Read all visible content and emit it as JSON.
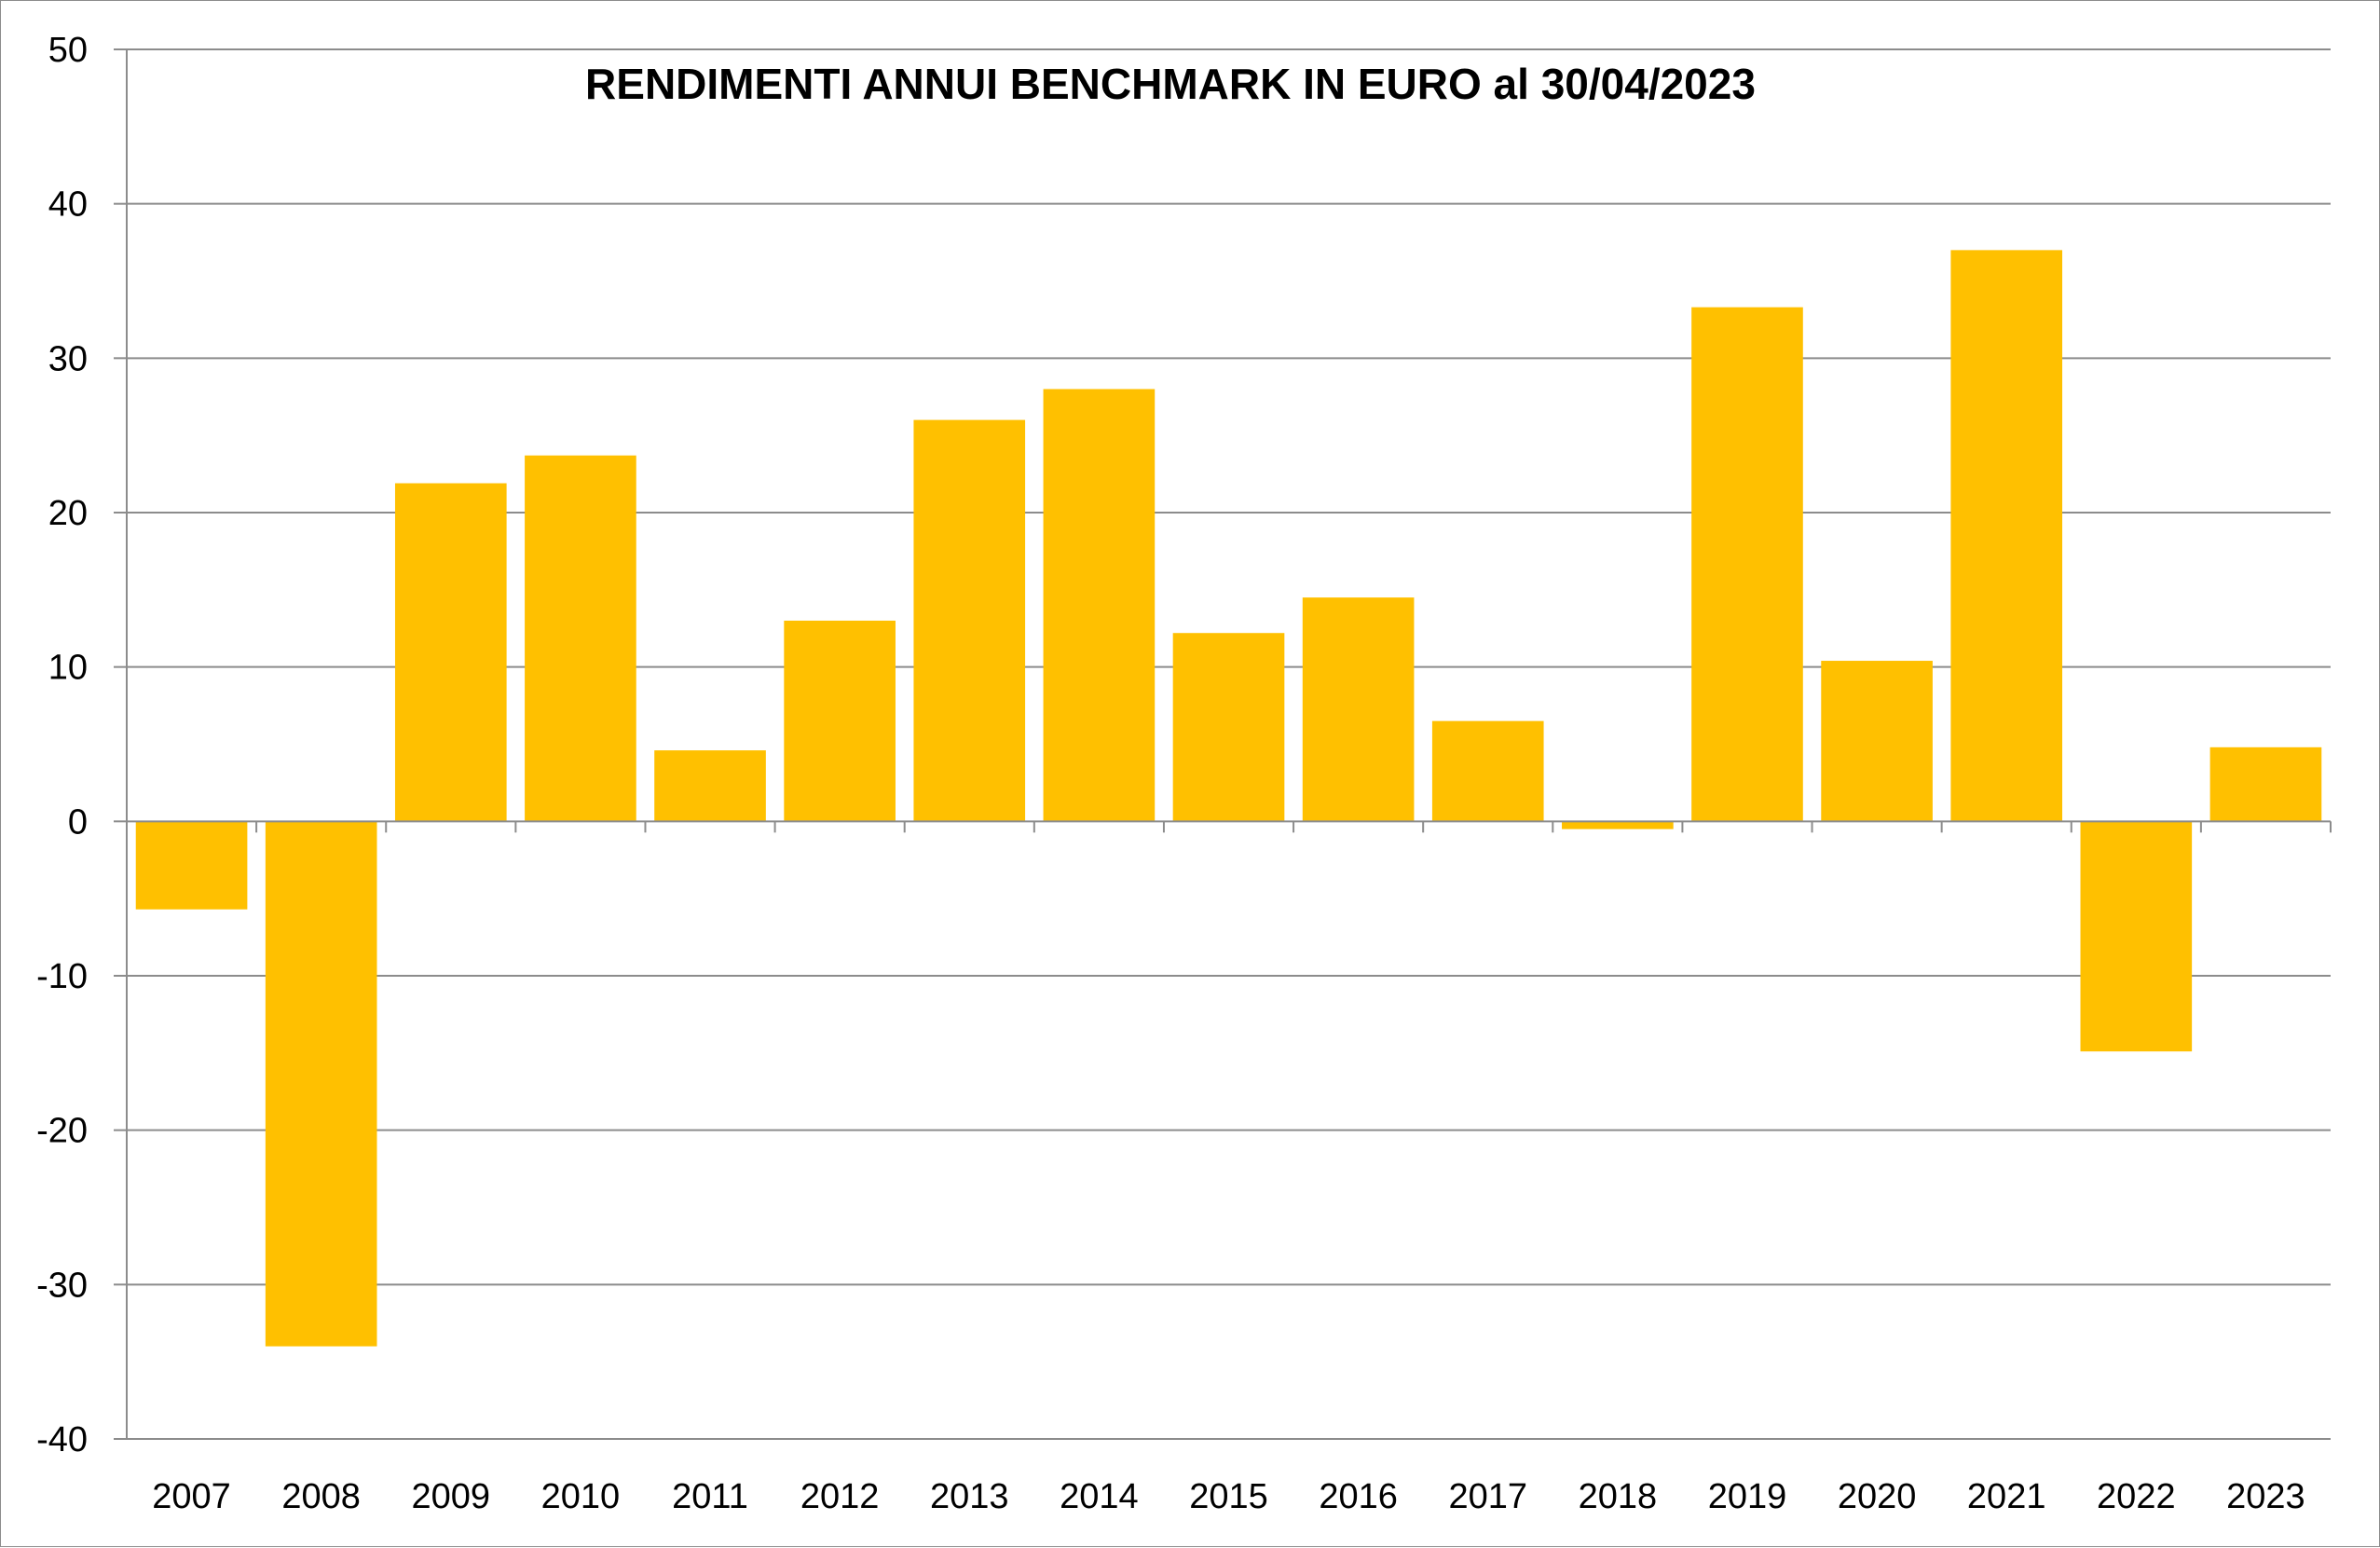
{
  "chart_data": {
    "type": "bar",
    "title": "RENDIMENTI ANNUI BENCHMARK IN EURO al 30/04/2023",
    "xlabel": "",
    "ylabel": "",
    "categories": [
      "2007",
      "2008",
      "2009",
      "2010",
      "2011",
      "2012",
      "2013",
      "2014",
      "2015",
      "2016",
      "2017",
      "2018",
      "2019",
      "2020",
      "2021",
      "2022",
      "2023"
    ],
    "values": [
      -5.7,
      -34.0,
      21.9,
      23.7,
      4.6,
      13.0,
      26.0,
      28.0,
      12.2,
      14.5,
      6.5,
      -0.5,
      33.3,
      10.4,
      37.0,
      -14.9,
      4.8
    ],
    "ylim": [
      -40,
      50
    ],
    "yticks": [
      "50",
      "40",
      "30",
      "20",
      "10",
      "0",
      "-10",
      "-20",
      "-30",
      "-40"
    ],
    "grid": true,
    "bar_color": "#ffc000"
  }
}
